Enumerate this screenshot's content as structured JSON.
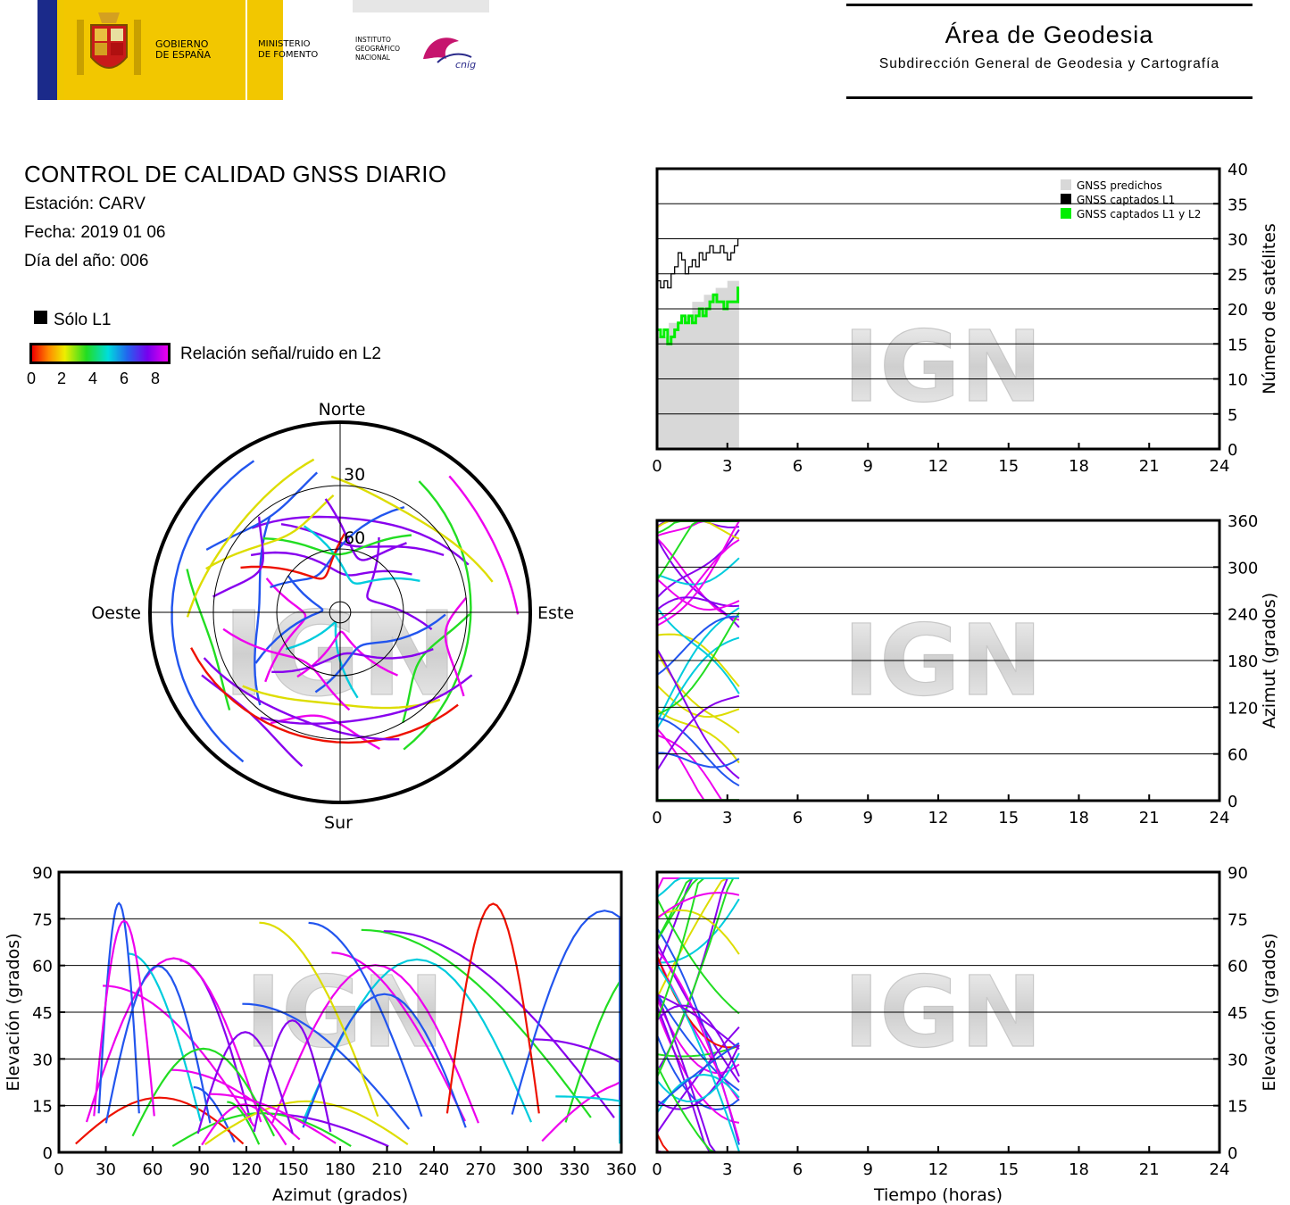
{
  "header": {
    "logo": {
      "gov1": "GOBIERNO",
      "gov2": "DE ESPAÑA",
      "min1": "MINISTERIO",
      "min2": "DE FOMENTO",
      "ign1": "INSTITUTO",
      "ign2": "GEOGRÁFICO",
      "ign3": "NACIONAL",
      "cnig": "cnig"
    },
    "area_title": "Área de Geodesia",
    "area_subtitle": "Subdirección General de Geodesia y Cartografía"
  },
  "report": {
    "title": "CONTROL DE CALIDAD GNSS DIARIO",
    "station": "Estación: CARV",
    "date": "Fecha: 2019 01 06",
    "doy": "Día del año: 006"
  },
  "legend": {
    "only_l1": "Sólo L1",
    "snr_label": "Relación señal/ruido en L2",
    "snr_ticks": [
      "0",
      "2",
      "4",
      "6",
      "8"
    ]
  },
  "watermark": "IGN",
  "colors": {
    "predicted": "#d8d8d8",
    "captured_l1": "#000000",
    "captured_l1_l2": "#00ee00",
    "gridline": "#000000",
    "magenta": "#ee00ee",
    "violet": "#8800ee",
    "blue": "#2255ee",
    "cyan": "#00ccdd",
    "green": "#22dd22",
    "yellow": "#dddd00",
    "red": "#ee1100"
  },
  "chart_data": [
    {
      "id": "satellite_count",
      "type": "line",
      "xlim": [
        0,
        24
      ],
      "ylim": [
        0,
        40
      ],
      "xticks": [
        "0",
        "3",
        "6",
        "9",
        "12",
        "15",
        "18",
        "21",
        "24"
      ],
      "yticks": [
        "0",
        "5",
        "10",
        "15",
        "20",
        "25",
        "30",
        "35",
        "40"
      ],
      "ylabel": "Número de satélites",
      "legend": [
        "GNSS predichos",
        "GNSS captados L1",
        "GNSS captados L1 y L2"
      ],
      "legend_position": "top-right",
      "grid": true,
      "series": [
        {
          "name": "GNSS predichos",
          "kind": "area",
          "color": "#d8d8d8",
          "x": [
            0,
            0.5,
            1.0,
            1.5,
            2.0,
            2.5,
            3.0,
            3.5
          ],
          "y": [
            16,
            18,
            19,
            21,
            22,
            23,
            24,
            24
          ]
        },
        {
          "name": "GNSS captados L1",
          "kind": "step",
          "color": "#000000",
          "x": [
            0,
            0.15,
            0.3,
            0.45,
            0.6,
            0.75,
            0.9,
            1.05,
            1.2,
            1.35,
            1.5,
            1.65,
            1.8,
            1.95,
            2.1,
            2.25,
            2.4,
            2.55,
            2.7,
            2.85,
            3.0,
            3.15,
            3.3,
            3.45
          ],
          "y": [
            24,
            23,
            24,
            23,
            25,
            26,
            28,
            27,
            25,
            26,
            27,
            26,
            28,
            27,
            28,
            29,
            28,
            28,
            29,
            28,
            27,
            28,
            29,
            30
          ]
        },
        {
          "name": "GNSS captados L1 y L2",
          "kind": "step",
          "color": "#00ee00",
          "x": [
            0,
            0.15,
            0.3,
            0.45,
            0.6,
            0.75,
            0.9,
            1.05,
            1.2,
            1.35,
            1.5,
            1.65,
            1.8,
            1.95,
            2.1,
            2.25,
            2.4,
            2.55,
            2.7,
            2.85,
            3.0,
            3.15,
            3.3,
            3.45
          ],
          "y": [
            17,
            16,
            17,
            15,
            16,
            17,
            18,
            19,
            18,
            19,
            18,
            19,
            20,
            19,
            20,
            21,
            22,
            21,
            21,
            20,
            21,
            21,
            21,
            23
          ]
        }
      ]
    },
    {
      "id": "skyplot",
      "type": "scatter",
      "projection": "polar",
      "directions": {
        "north": "Norte",
        "south": "Sur",
        "east": "Este",
        "west": "Oeste"
      },
      "rings": [
        "30",
        "60"
      ],
      "description": "Satellite tracks (azimuth, elevation) colored by L2 SNR"
    },
    {
      "id": "azimuth_time",
      "type": "scatter",
      "xlim": [
        0,
        24
      ],
      "ylim": [
        0,
        360
      ],
      "xticks": [
        "0",
        "3",
        "6",
        "9",
        "12",
        "15",
        "18",
        "21",
        "24"
      ],
      "yticks": [
        "0",
        "60",
        "120",
        "180",
        "240",
        "300",
        "360"
      ],
      "ylabel": "Azimut (grados)",
      "grid": true
    },
    {
      "id": "elevation_azimuth",
      "type": "scatter",
      "xlim": [
        0,
        360
      ],
      "ylim": [
        0,
        90
      ],
      "xticks": [
        "0",
        "30",
        "60",
        "90",
        "120",
        "150",
        "180",
        "210",
        "240",
        "270",
        "300",
        "330",
        "360"
      ],
      "yticks": [
        "0",
        "15",
        "30",
        "45",
        "60",
        "75",
        "90"
      ],
      "xlabel": "Azimut (grados)",
      "ylabel": "Elevación (grados)",
      "grid": true
    },
    {
      "id": "elevation_time",
      "type": "scatter",
      "xlim": [
        0,
        24
      ],
      "ylim": [
        0,
        90
      ],
      "xticks": [
        "0",
        "3",
        "6",
        "9",
        "12",
        "15",
        "18",
        "21",
        "24"
      ],
      "yticks": [
        "0",
        "15",
        "30",
        "45",
        "60",
        "75",
        "90"
      ],
      "xlabel": "Tiempo (horas)",
      "ylabel": "Elevación (grados)",
      "grid": true
    }
  ]
}
